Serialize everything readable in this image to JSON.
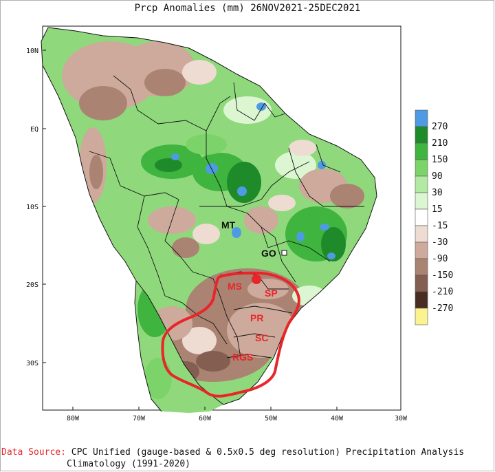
{
  "title": "Prcp Anomalies (mm) 26NOV2021-25DEC2021",
  "latitude_labels": [
    "10N",
    "EQ",
    "10S",
    "20S",
    "30S"
  ],
  "longitude_labels": [
    "80W",
    "70W",
    "60W",
    "50W",
    "40W",
    "30W"
  ],
  "colorbar": {
    "labels": [
      "270",
      "210",
      "150",
      "90",
      "30",
      "15",
      "-15",
      "-30",
      "-90",
      "-150",
      "-210",
      "-270"
    ],
    "colors": [
      "#4f9be3",
      "#1e8a2a",
      "#3fb43f",
      "#7bd36a",
      "#b2eaa3",
      "#dcf6d2",
      "#ffffff",
      "#eedcd2",
      "#cdaa9b",
      "#ab8373",
      "#845e50",
      "#4a2d22",
      "#faf38f"
    ]
  },
  "state_labels": {
    "mt": "MT",
    "go": "GO",
    "ms": "MS",
    "sp": "SP",
    "pr": "PR",
    "sc": "SC",
    "rgs": "RGS"
  },
  "colors": {
    "highlight": "#e8262a",
    "ocean": "#ffffff",
    "border": "#111111"
  },
  "source": {
    "label": "Data Source:",
    "text": "CPC Unified (gauge-based & 0.5x0.5 deg resolution) Precipitation Analysis",
    "line2": "Climatology (1991-2020)"
  }
}
